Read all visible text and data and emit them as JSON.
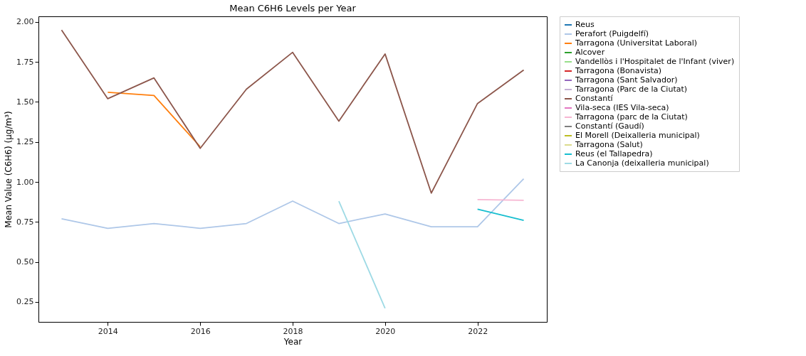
{
  "chart_data": {
    "type": "line",
    "title": "Mean C6H6 Levels per Year",
    "xlabel": "Year",
    "ylabel": "Mean Value (C6H6) (µg/m³)",
    "x": [
      2013,
      2014,
      2015,
      2016,
      2017,
      2018,
      2019,
      2020,
      2021,
      2022,
      2023
    ],
    "xlim": [
      2012.5,
      2023.5
    ],
    "xticks": [
      2014,
      2016,
      2018,
      2020,
      2022
    ],
    "ylim": [
      0.125,
      2.035
    ],
    "yticks": [
      0.25,
      {
        "value": 0.5,
        "label": "0.50"
      },
      0.75,
      {
        "value": 1.0,
        "label": "1.00"
      },
      1.25,
      {
        "value": 1.5,
        "label": "1.50"
      },
      1.75,
      {
        "value": 2.0,
        "label": "2.00"
      }
    ],
    "grid": false,
    "legend": "right",
    "marker": "none",
    "line_style": "solid",
    "series": [
      {
        "name": "Reus",
        "color": "#1f77b4",
        "values": [
          null,
          null,
          null,
          null,
          null,
          null,
          null,
          null,
          null,
          null,
          null
        ]
      },
      {
        "name": "Perafort (Puigdelfí)",
        "color": "#aec7e8",
        "values": [
          0.77,
          0.71,
          0.74,
          0.71,
          0.74,
          0.88,
          0.74,
          0.8,
          0.72,
          0.72,
          1.02
        ]
      },
      {
        "name": "Tarragona (Universitat Laboral)",
        "color": "#ff7f0e",
        "values": [
          null,
          1.56,
          1.54,
          1.22,
          null,
          null,
          null,
          null,
          null,
          null,
          null
        ]
      },
      {
        "name": "Alcover",
        "color": "#2ca02c",
        "values": [
          null,
          null,
          null,
          null,
          null,
          null,
          null,
          null,
          null,
          null,
          null
        ]
      },
      {
        "name": "Vandellòs i l'Hospitalet de l'Infant (viver)",
        "color": "#98df8a",
        "values": [
          null,
          null,
          null,
          null,
          null,
          null,
          null,
          null,
          null,
          null,
          null
        ]
      },
      {
        "name": "Tarragona (Bonavista)",
        "color": "#d62728",
        "values": [
          null,
          null,
          null,
          null,
          null,
          null,
          null,
          null,
          null,
          null,
          null
        ]
      },
      {
        "name": "Tarragona (Sant Salvador)",
        "color": "#9467bd",
        "values": [
          null,
          null,
          null,
          null,
          null,
          null,
          null,
          null,
          null,
          null,
          null
        ]
      },
      {
        "name": "Tarragona (Parc de la Ciutat)",
        "color": "#c5b0d5",
        "values": [
          null,
          null,
          null,
          null,
          null,
          null,
          null,
          null,
          null,
          null,
          null
        ]
      },
      {
        "name": "Constantí",
        "color": "#8c564b",
        "values": [
          1.95,
          1.52,
          1.65,
          1.21,
          1.58,
          1.81,
          1.38,
          1.8,
          0.93,
          1.49,
          1.7
        ]
      },
      {
        "name": "Vila-seca (IES Vila-seca)",
        "color": "#e377c2",
        "values": [
          null,
          null,
          null,
          null,
          null,
          null,
          null,
          null,
          null,
          null,
          null
        ]
      },
      {
        "name": "Tarragona (parc de la Ciutat)",
        "color": "#f7b6d2",
        "values": [
          null,
          null,
          null,
          null,
          null,
          null,
          null,
          null,
          null,
          0.89,
          0.885
        ]
      },
      {
        "name": "Constantí (Gaudí)",
        "color": "#7f7f7f",
        "values": [
          null,
          null,
          null,
          null,
          null,
          null,
          null,
          null,
          null,
          null,
          null
        ]
      },
      {
        "name": "El Morell (Deixalleria municipal)",
        "color": "#bcbd22",
        "values": [
          null,
          null,
          null,
          null,
          null,
          null,
          null,
          null,
          null,
          null,
          null
        ]
      },
      {
        "name": "Tarragona (Salut)",
        "color": "#dbdb8d",
        "values": [
          null,
          null,
          null,
          null,
          null,
          null,
          null,
          null,
          null,
          null,
          null
        ]
      },
      {
        "name": "Reus (el Tallapedra)",
        "color": "#17becf",
        "values": [
          null,
          null,
          null,
          null,
          null,
          null,
          null,
          null,
          null,
          0.83,
          0.76
        ]
      },
      {
        "name": "La Canonja (deixalleria municipal)",
        "color": "#9edae5",
        "values": [
          null,
          null,
          null,
          null,
          null,
          null,
          0.88,
          0.21,
          null,
          null,
          null
        ]
      }
    ]
  }
}
